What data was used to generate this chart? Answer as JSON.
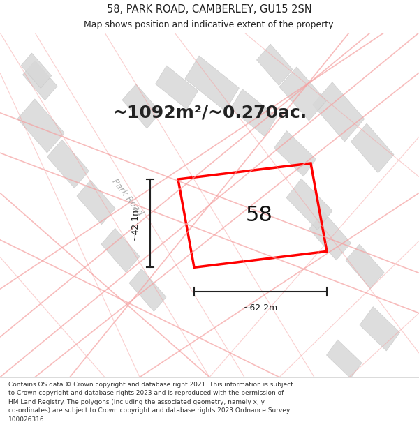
{
  "title_line1": "58, PARK ROAD, CAMBERLEY, GU15 2SN",
  "title_line2": "Map shows position and indicative extent of the property.",
  "area_text": "~1092m²/~0.270ac.",
  "plot_label": "58",
  "dim_h": "~42.1m",
  "dim_w": "~62.2m",
  "road_label": "Park Road",
  "footer_text": "Contains OS data © Crown copyright and database right 2021. This information is subject\nto Crown copyright and database rights 2023 and is reproduced with the permission of\nHM Land Registry. The polygons (including the associated geometry, namely x, y\nco-ordinates) are subject to Crown copyright and database rights 2023 Ordnance Survey\n100026316.",
  "map_bg": "#f2efec",
  "title_bg": "#ffffff",
  "footer_bg": "#ffffff",
  "plot_color": "#ff0000",
  "road_color": "#f5a0a0",
  "building_color": "#d8d8d8",
  "building_edge": "#c8c8c8",
  "dim_color": "#222222",
  "area_color": "#222222"
}
